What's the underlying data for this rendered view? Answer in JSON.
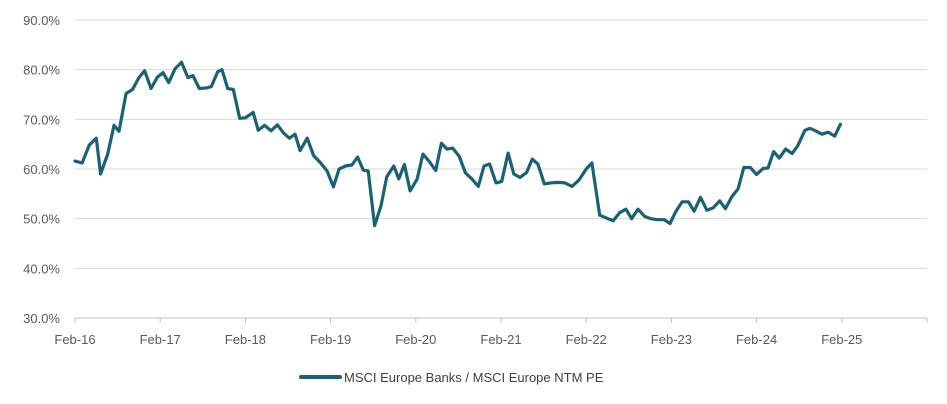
{
  "chart_data": {
    "type": "line",
    "title": "",
    "xlabel": "",
    "ylabel": "",
    "ylim": [
      30,
      90
    ],
    "y_ticks": [
      30,
      40,
      50,
      60,
      70,
      80,
      90
    ],
    "y_tick_labels": [
      "30.0%",
      "40.0%",
      "50.0%",
      "60.0%",
      "70.0%",
      "80.0%",
      "90.0%"
    ],
    "x_tick_labels": [
      "Feb-16",
      "Feb-17",
      "Feb-18",
      "Feb-19",
      "Feb-20",
      "Feb-21",
      "Feb-22",
      "Feb-23",
      "Feb-24",
      "Feb-25"
    ],
    "x_range_months": [
      0,
      120
    ],
    "grid": "horizontal",
    "legend_position": "bottom",
    "series": [
      {
        "name": "MSCI Europe Banks / MSCI Europe NTM PE",
        "color": "#1a6273",
        "points": [
          [
            0,
            61.6
          ],
          [
            1,
            61.2
          ],
          [
            2,
            64.8
          ],
          [
            3,
            66.2
          ],
          [
            3.6,
            59.0
          ],
          [
            4.6,
            63.0
          ],
          [
            5.5,
            68.8
          ],
          [
            6.2,
            67.6
          ],
          [
            7.2,
            75.2
          ],
          [
            8.1,
            76.0
          ],
          [
            9,
            78.4
          ],
          [
            9.8,
            79.8
          ],
          [
            10.7,
            76.2
          ],
          [
            11.6,
            78.5
          ],
          [
            12.4,
            79.4
          ],
          [
            13.2,
            77.4
          ],
          [
            14.1,
            80.2
          ],
          [
            15,
            81.5
          ],
          [
            15.9,
            78.4
          ],
          [
            16.6,
            78.8
          ],
          [
            17.5,
            76.2
          ],
          [
            18.5,
            76.3
          ],
          [
            19.2,
            76.6
          ],
          [
            20.1,
            79.6
          ],
          [
            20.7,
            80.0
          ],
          [
            21.5,
            76.2
          ],
          [
            22.3,
            76.0
          ],
          [
            23.2,
            70.2
          ],
          [
            24,
            70.3
          ],
          [
            25.1,
            71.4
          ],
          [
            25.8,
            67.8
          ],
          [
            26.7,
            68.8
          ],
          [
            27.6,
            67.7
          ],
          [
            28.5,
            68.9
          ],
          [
            29.4,
            67.2
          ],
          [
            30.2,
            66.2
          ],
          [
            31,
            67.0
          ],
          [
            31.7,
            63.7
          ],
          [
            32.7,
            66.2
          ],
          [
            33.6,
            62.7
          ],
          [
            34.6,
            61.2
          ],
          [
            35.5,
            59.6
          ],
          [
            36.4,
            56.4
          ],
          [
            37.2,
            60.0
          ],
          [
            38.1,
            60.6
          ],
          [
            39,
            60.8
          ],
          [
            39.8,
            62.4
          ],
          [
            40.6,
            59.8
          ],
          [
            41.3,
            59.6
          ],
          [
            42.2,
            48.6
          ],
          [
            43.1,
            52.6
          ],
          [
            43.9,
            58.4
          ],
          [
            44.9,
            60.6
          ],
          [
            45.6,
            58.0
          ],
          [
            46.4,
            60.9
          ],
          [
            47.2,
            55.6
          ],
          [
            48.2,
            58.0
          ],
          [
            49,
            63.0
          ],
          [
            49.9,
            61.5
          ],
          [
            50.8,
            59.7
          ],
          [
            51.6,
            65.2
          ],
          [
            52.4,
            64.0
          ],
          [
            53.2,
            64.2
          ],
          [
            54.1,
            62.6
          ],
          [
            55,
            59.2
          ],
          [
            55.9,
            58.0
          ],
          [
            56.8,
            56.5
          ],
          [
            57.6,
            60.6
          ],
          [
            58.4,
            61.0
          ],
          [
            59.3,
            57.2
          ],
          [
            60.1,
            57.5
          ],
          [
            61,
            63.2
          ],
          [
            61.8,
            59.0
          ],
          [
            62.7,
            58.3
          ],
          [
            63.6,
            59.3
          ],
          [
            64.4,
            62.0
          ],
          [
            65.2,
            61.0
          ],
          [
            66.1,
            57.0
          ],
          [
            67,
            57.2
          ],
          [
            68,
            57.3
          ],
          [
            69,
            57.2
          ],
          [
            70,
            56.5
          ],
          [
            71,
            57.8
          ],
          [
            72,
            60.0
          ],
          [
            72.8,
            61.2
          ],
          [
            73.9,
            50.7
          ],
          [
            74.9,
            50.1
          ],
          [
            75.8,
            49.6
          ],
          [
            76.7,
            51.2
          ],
          [
            77.6,
            51.9
          ],
          [
            78.4,
            50.0
          ],
          [
            79.3,
            51.9
          ],
          [
            80.2,
            50.5
          ],
          [
            81.1,
            50.0
          ],
          [
            82,
            49.8
          ],
          [
            83,
            49.8
          ],
          [
            83.8,
            49.0
          ],
          [
            84.6,
            51.4
          ],
          [
            85.5,
            53.4
          ],
          [
            86.4,
            53.4
          ],
          [
            87.2,
            51.5
          ],
          [
            88.1,
            54.3
          ],
          [
            89,
            51.7
          ],
          [
            89.9,
            52.2
          ],
          [
            90.8,
            53.6
          ],
          [
            91.6,
            52.0
          ],
          [
            92.5,
            54.4
          ],
          [
            93.4,
            56.0
          ],
          [
            94.2,
            60.3
          ],
          [
            95.1,
            60.3
          ],
          [
            96,
            58.9
          ],
          [
            96.9,
            60.1
          ],
          [
            97.6,
            60.2
          ],
          [
            98.4,
            63.5
          ],
          [
            99.2,
            62.2
          ],
          [
            100.1,
            64.0
          ],
          [
            101,
            63.1
          ],
          [
            101.8,
            64.7
          ],
          [
            102.8,
            67.8
          ],
          [
            103.5,
            68.2
          ],
          [
            104.3,
            67.7
          ],
          [
            105.2,
            67.0
          ],
          [
            106.1,
            67.4
          ],
          [
            107,
            66.6
          ],
          [
            107.8,
            69.0
          ]
        ]
      }
    ]
  }
}
